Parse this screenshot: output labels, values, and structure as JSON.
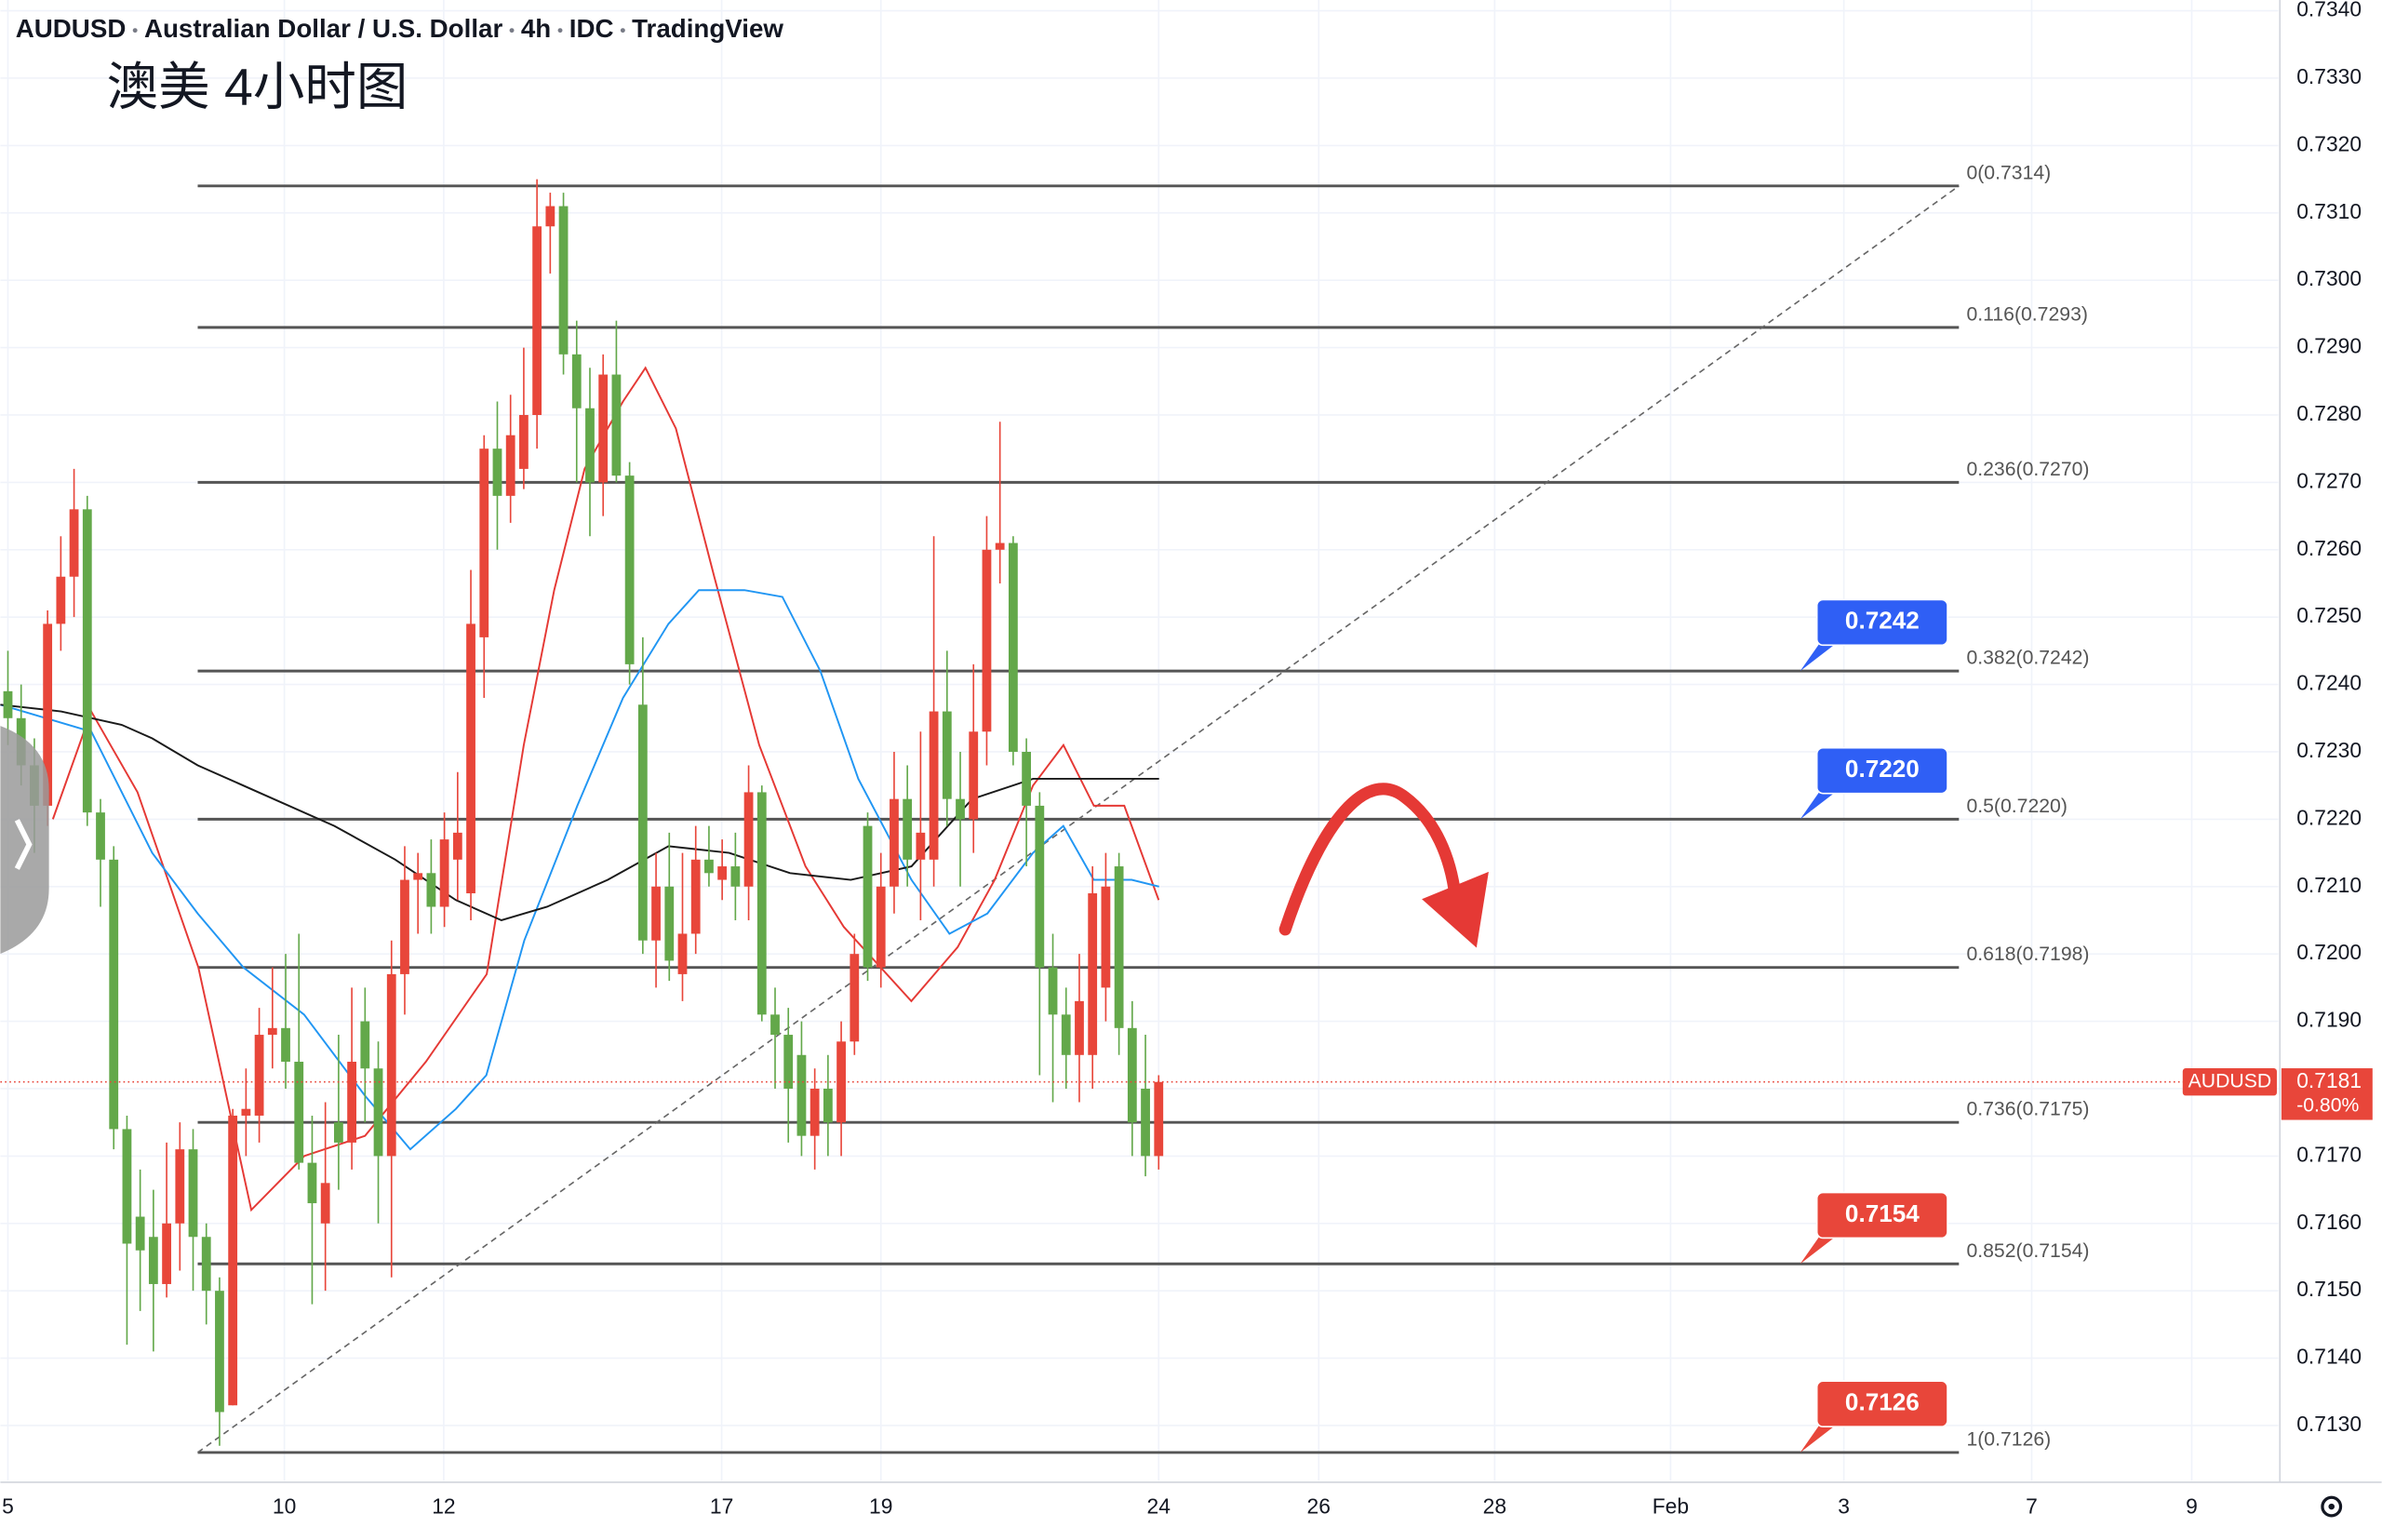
{
  "chart_data": {
    "type": "candlestick",
    "header": [
      "AUDUSD",
      "Australian Dollar / U.S. Dollar",
      "4h",
      "IDC",
      "TradingView"
    ],
    "title": "澳美 4小时图",
    "x": [
      0,
      1,
      2,
      3,
      4,
      5,
      6,
      7,
      8,
      9,
      10,
      11,
      12,
      13,
      14,
      15,
      16,
      17,
      18,
      19,
      20,
      21,
      22,
      23,
      24,
      25,
      26,
      27,
      28,
      29,
      30,
      31,
      32,
      33,
      34,
      35,
      36,
      37,
      38,
      39,
      40,
      41,
      42,
      43,
      44,
      45,
      46,
      47,
      48,
      49,
      50,
      51,
      52,
      53,
      54,
      55,
      56,
      57,
      58,
      59,
      60,
      61,
      62,
      63,
      64,
      65,
      66,
      67,
      68,
      69,
      70,
      71,
      72,
      73,
      74,
      75,
      76,
      77,
      78,
      79,
      80,
      81,
      82,
      83,
      84,
      85,
      86,
      87
    ],
    "open": [
      0.7239,
      0.7235,
      0.7228,
      0.7222,
      0.7249,
      0.7256,
      0.7266,
      0.7221,
      0.7214,
      0.7174,
      0.7161,
      0.7158,
      0.7151,
      0.716,
      0.7171,
      0.7158,
      0.715,
      0.7133,
      0.7176,
      0.7176,
      0.7188,
      0.7189,
      0.7184,
      0.7169,
      0.716,
      0.7175,
      0.7172,
      0.719,
      0.7183,
      0.717,
      0.7197,
      0.7211,
      0.7212,
      0.7207,
      0.7214,
      0.7209,
      0.7247,
      0.7275,
      0.7268,
      0.7272,
      0.728,
      0.7308,
      0.7311,
      0.7289,
      0.7281,
      0.727,
      0.7286,
      0.7271,
      0.7237,
      0.7202,
      0.721,
      0.7197,
      0.7203,
      0.7214,
      0.7211,
      0.7213,
      0.721,
      0.7224,
      0.7191,
      0.7188,
      0.7185,
      0.7173,
      0.718,
      0.7175,
      0.7187,
      0.7219,
      0.7198,
      0.721,
      0.7223,
      0.7214,
      0.7214,
      0.7236,
      0.7223,
      0.722,
      0.7233,
      0.726,
      0.7261,
      0.723,
      0.7222,
      0.7198,
      0.7191,
      0.7185,
      0.7185,
      0.7195,
      0.7213,
      0.7189,
      0.718,
      0.717
    ],
    "high": [
      0.7245,
      0.724,
      0.7232,
      0.7251,
      0.7262,
      0.7272,
      0.7268,
      0.7223,
      0.7216,
      0.7176,
      0.7168,
      0.7165,
      0.7172,
      0.7175,
      0.7174,
      0.716,
      0.7152,
      0.7177,
      0.7183,
      0.7192,
      0.7198,
      0.72,
      0.7203,
      0.7176,
      0.7178,
      0.7188,
      0.7195,
      0.7195,
      0.7187,
      0.7202,
      0.7216,
      0.7215,
      0.7217,
      0.7221,
      0.7227,
      0.7257,
      0.7277,
      0.7282,
      0.7283,
      0.729,
      0.7315,
      0.7313,
      0.7313,
      0.7294,
      0.7287,
      0.7289,
      0.7294,
      0.7273,
      0.7247,
      0.7215,
      0.7218,
      0.7215,
      0.7219,
      0.7219,
      0.7217,
      0.7218,
      0.7228,
      0.7225,
      0.7195,
      0.7192,
      0.719,
      0.7183,
      0.7185,
      0.719,
      0.7203,
      0.7221,
      0.7215,
      0.723,
      0.7228,
      0.7233,
      0.7262,
      0.7245,
      0.723,
      0.7243,
      0.7265,
      0.7279,
      0.7262,
      0.7232,
      0.7224,
      0.7203,
      0.7195,
      0.72,
      0.7213,
      0.7215,
      0.7215,
      0.7193,
      0.7188,
      0.7182
    ],
    "low": [
      0.7231,
      0.7225,
      0.7215,
      0.7219,
      0.7245,
      0.725,
      0.7219,
      0.7207,
      0.7171,
      0.7142,
      0.7147,
      0.7141,
      0.7149,
      0.7153,
      0.715,
      0.7145,
      0.7127,
      0.7133,
      0.717,
      0.7172,
      0.7183,
      0.718,
      0.7168,
      0.7148,
      0.715,
      0.7165,
      0.7168,
      0.7175,
      0.716,
      0.7152,
      0.7191,
      0.7203,
      0.7203,
      0.7204,
      0.7208,
      0.7205,
      0.7238,
      0.726,
      0.7264,
      0.7269,
      0.7275,
      0.7301,
      0.7286,
      0.727,
      0.7262,
      0.7265,
      0.727,
      0.724,
      0.72,
      0.7195,
      0.7196,
      0.7193,
      0.72,
      0.721,
      0.7208,
      0.7205,
      0.7205,
      0.719,
      0.718,
      0.7172,
      0.717,
      0.7168,
      0.717,
      0.717,
      0.7185,
      0.7196,
      0.7195,
      0.7206,
      0.721,
      0.7205,
      0.721,
      0.7219,
      0.721,
      0.7215,
      0.7228,
      0.7255,
      0.7228,
      0.7213,
      0.7182,
      0.7178,
      0.718,
      0.7178,
      0.718,
      0.719,
      0.7185,
      0.717,
      0.7167,
      0.7168
    ],
    "close": [
      0.7235,
      0.7228,
      0.7222,
      0.7249,
      0.7256,
      0.7266,
      0.7221,
      0.7214,
      0.7174,
      0.7157,
      0.7156,
      0.7151,
      0.716,
      0.7171,
      0.7158,
      0.715,
      0.7132,
      0.7176,
      0.7177,
      0.7188,
      0.7189,
      0.7184,
      0.7169,
      0.7163,
      0.7166,
      0.7172,
      0.7184,
      0.7183,
      0.717,
      0.7197,
      0.7211,
      0.7212,
      0.7207,
      0.7217,
      0.7218,
      0.7249,
      0.7275,
      0.7268,
      0.7277,
      0.728,
      0.7308,
      0.7311,
      0.7289,
      0.7281,
      0.727,
      0.7286,
      0.7271,
      0.7243,
      0.7202,
      0.721,
      0.7199,
      0.7203,
      0.7214,
      0.7212,
      0.7213,
      0.721,
      0.7224,
      0.7191,
      0.7188,
      0.718,
      0.7173,
      0.718,
      0.7175,
      0.7187,
      0.72,
      0.7198,
      0.721,
      0.7223,
      0.7214,
      0.7218,
      0.7236,
      0.7223,
      0.722,
      0.7233,
      0.726,
      0.7261,
      0.723,
      0.7222,
      0.7198,
      0.7191,
      0.7185,
      0.7193,
      0.7209,
      0.721,
      0.7189,
      0.7175,
      0.717,
      0.7181
    ],
    "up_color": "#e8463a",
    "down_color": "#63a84a",
    "indicators": [
      {
        "color": "#e53935",
        "x": [
          3.4,
          6.3,
          9.8,
          14.4,
          18.4,
          22.4,
          27.0,
          31.6,
          36.2,
          39.0,
          41.3,
          43.6,
          46.5,
          48.2,
          50.5,
          53.4,
          56.8,
          60.3,
          63.2,
          68.3,
          71.8,
          74.6,
          77.5,
          79.8,
          82.1,
          84.4,
          87.0
        ],
        "values": [
          0.722,
          0.7236,
          0.7224,
          0.7198,
          0.7162,
          0.717,
          0.7173,
          0.7184,
          0.7197,
          0.7231,
          0.7254,
          0.7272,
          0.7282,
          0.7287,
          0.7278,
          0.7256,
          0.7231,
          0.7213,
          0.7204,
          0.7193,
          0.7201,
          0.7211,
          0.7225,
          0.7231,
          0.7222,
          0.7222,
          0.7208
        ]
      },
      {
        "color": "#2196f3",
        "x": [
          -0.57,
          6.31,
          10.91,
          14.35,
          17.8,
          22.39,
          26.98,
          30.42,
          33.87,
          36.17,
          39.04,
          43.05,
          46.5,
          49.94,
          52.24,
          55.68,
          58.55,
          61.42,
          64.29,
          68.31,
          71.18,
          74.05,
          77.5,
          79.79,
          82.09,
          84.96,
          87.03
        ],
        "values": [
          0.7237,
          0.7233,
          0.7215,
          0.7206,
          0.7198,
          0.7191,
          0.7179,
          0.7171,
          0.7177,
          0.7182,
          0.7202,
          0.7222,
          0.7238,
          0.7249,
          0.7254,
          0.7254,
          0.7253,
          0.7242,
          0.7226,
          0.7211,
          0.7203,
          0.7206,
          0.7215,
          0.7219,
          0.7211,
          0.7211,
          0.721
        ]
      },
      {
        "color": "#1a1a1a",
        "x": [
          -0.57,
          4.02,
          8.61,
          10.91,
          14.35,
          18.94,
          24.68,
          29.28,
          33.87,
          37.31,
          40.76,
          45.35,
          49.94,
          54.53,
          59.13,
          63.72,
          68.31,
          72.9,
          77.5,
          82.09,
          84.96,
          87.03
        ],
        "values": [
          0.7237,
          0.7236,
          0.7234,
          0.7232,
          0.7228,
          0.7224,
          0.7219,
          0.7214,
          0.7208,
          0.7205,
          0.7207,
          0.7211,
          0.7216,
          0.7215,
          0.7212,
          0.7211,
          0.7213,
          0.7223,
          0.7226,
          0.7226,
          0.7226,
          0.7226
        ]
      }
    ],
    "fib_x": [
      14.35,
      147.5
    ],
    "fib_levels": [
      {
        "value": 0.7314,
        "label": "0(0.7314)"
      },
      {
        "value": 0.7293,
        "label": "0.116(0.7293)"
      },
      {
        "value": 0.727,
        "label": "0.236(0.7270)"
      },
      {
        "value": 0.7242,
        "label": "0.382(0.7242)"
      },
      {
        "value": 0.722,
        "label": "0.5(0.7220)"
      },
      {
        "value": 0.7198,
        "label": "0.618(0.7198)"
      },
      {
        "value": 0.7175,
        "label": "0.736(0.7175)"
      },
      {
        "value": 0.7154,
        "label": "0.852(0.7154)"
      },
      {
        "value": 0.7126,
        "label": "1(0.7126)"
      }
    ],
    "trendline": {
      "x": [
        14.35,
        147.5
      ],
      "values": [
        0.7126,
        0.7314
      ]
    },
    "callout_x": 135.5,
    "callouts": [
      {
        "value": 0.7242,
        "label": "0.7242",
        "color": "#2f5ff5"
      },
      {
        "value": 0.722,
        "label": "0.7220",
        "color": "#2f5ff5"
      },
      {
        "value": 0.7154,
        "label": "0.7154",
        "color": "#e8463a"
      },
      {
        "value": 0.7126,
        "label": "0.7126",
        "color": "#e8463a"
      }
    ],
    "last_price": {
      "value": 0.7181,
      "label": "0.7181",
      "change": "-0.80%",
      "symbol_tag": "AUDUSD",
      "color": "#e8463a"
    },
    "xlim": [
      -0.57,
      171.65
    ],
    "xticks": [
      {
        "value": 0,
        "label": "5"
      },
      {
        "value": 20.9,
        "label": "10"
      },
      {
        "value": 32.95,
        "label": "12"
      },
      {
        "value": 53.96,
        "label": "17"
      },
      {
        "value": 66.0,
        "label": "19"
      },
      {
        "value": 87.0,
        "label": "24"
      },
      {
        "value": 99.1,
        "label": "26"
      },
      {
        "value": 112.4,
        "label": "28"
      },
      {
        "value": 125.7,
        "label": "Feb"
      },
      {
        "value": 138.8,
        "label": "3"
      },
      {
        "value": 153.0,
        "label": "7"
      },
      {
        "value": 165.1,
        "label": "9"
      }
    ],
    "ylim": [
      0.71218,
      0.73416
    ],
    "yticks": [
      {
        "value": 0.713,
        "label": "0.7130"
      },
      {
        "value": 0.714,
        "label": "0.7140"
      },
      {
        "value": 0.715,
        "label": "0.7150"
      },
      {
        "value": 0.716,
        "label": "0.7160"
      },
      {
        "value": 0.717,
        "label": "0.7170"
      },
      {
        "value": 0.718,
        "label": "0.7180"
      },
      {
        "value": 0.719,
        "label": "0.7190"
      },
      {
        "value": 0.72,
        "label": "0.7200"
      },
      {
        "value": 0.721,
        "label": "0.7210"
      },
      {
        "value": 0.722,
        "label": "0.7220"
      },
      {
        "value": 0.723,
        "label": "0.7230"
      },
      {
        "value": 0.724,
        "label": "0.7240"
      },
      {
        "value": 0.725,
        "label": "0.7250"
      },
      {
        "value": 0.726,
        "label": "0.7260"
      },
      {
        "value": 0.727,
        "label": "0.7270"
      },
      {
        "value": 0.728,
        "label": "0.7280"
      },
      {
        "value": 0.729,
        "label": "0.7290"
      },
      {
        "value": 0.73,
        "label": "0.7300"
      },
      {
        "value": 0.731,
        "label": "0.7310"
      },
      {
        "value": 0.732,
        "label": "0.7320"
      },
      {
        "value": 0.733,
        "label": "0.7330"
      },
      {
        "value": 0.734,
        "label": "0.7340"
      }
    ],
    "grid": true
  }
}
